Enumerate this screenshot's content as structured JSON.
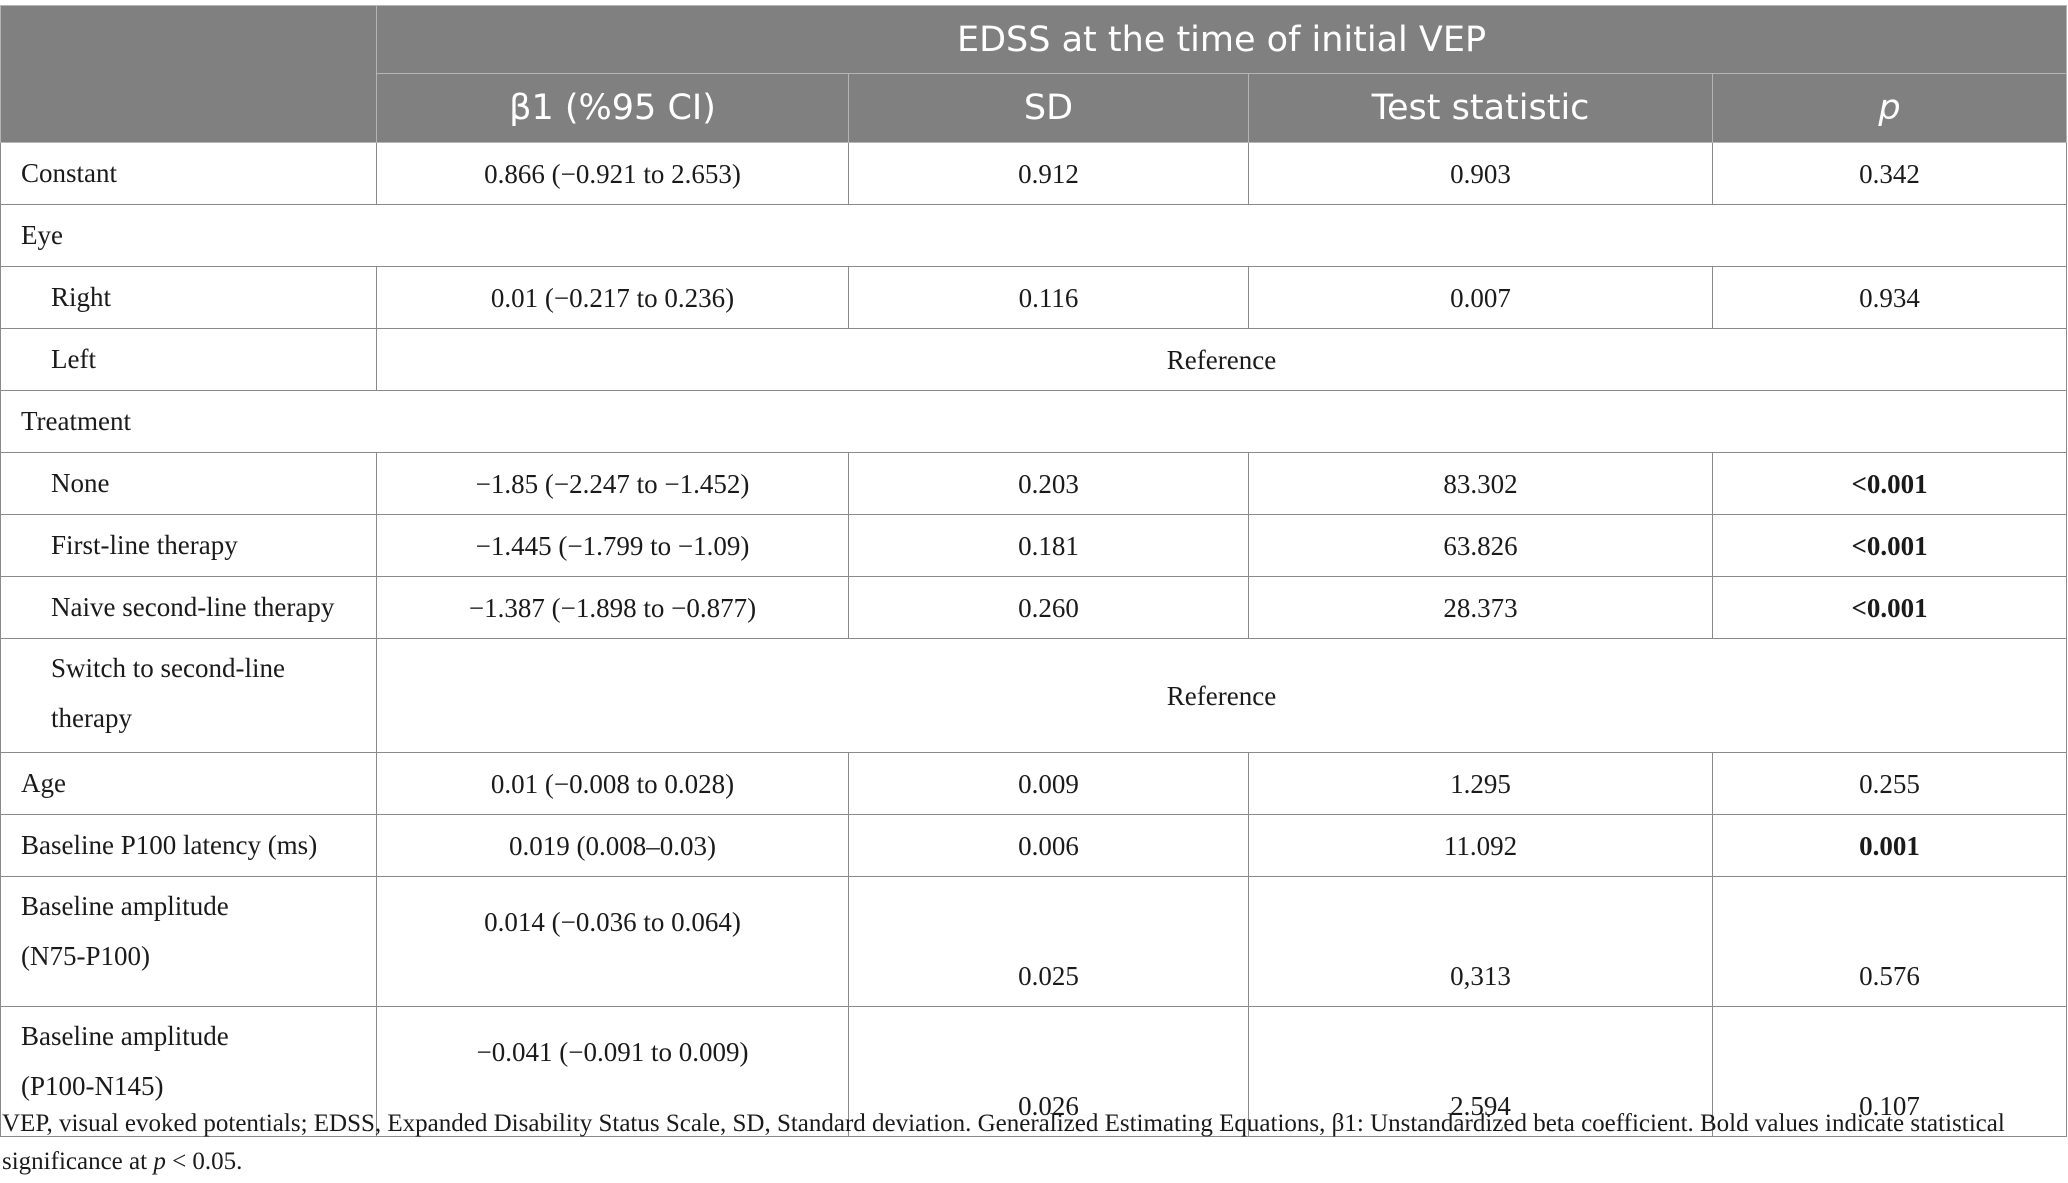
{
  "header": {
    "group_title": "EDSS at the time of initial VEP",
    "columns": [
      "β1 (%95 CI)",
      "SD",
      "Test statistic",
      "p"
    ]
  },
  "rows": {
    "constant": {
      "label": "Constant",
      "beta": "0.866 (−0.921 to 2.653)",
      "sd": "0.912",
      "stat": "0.903",
      "p": "0.342"
    },
    "eye": {
      "label": "Eye"
    },
    "right": {
      "label": "Right",
      "beta": "0.01 (−0.217 to 0.236)",
      "sd": "0.116",
      "stat": "0.007",
      "p": "0.934"
    },
    "left": {
      "label": "Left",
      "reference": "Reference"
    },
    "treatment": {
      "label": "Treatment"
    },
    "none": {
      "label": "None",
      "beta": "−1.85 (−2.247 to −1.452)",
      "sd": "0.203",
      "stat": "83.302",
      "p": "<0.001"
    },
    "first_line": {
      "label": "First-line therapy",
      "beta": "−1.445 (−1.799 to −1.09)",
      "sd": "0.181",
      "stat": "63.826",
      "p": "<0.001"
    },
    "naive_second": {
      "label": "Naive second-line therapy",
      "beta": "−1.387 (−1.898 to −0.877)",
      "sd": "0.260",
      "stat": "28.373",
      "p": "<0.001"
    },
    "switch_second": {
      "label_line1": "Switch to second-line",
      "label_line2": "therapy",
      "reference": "Reference"
    },
    "age": {
      "label": "Age",
      "beta": "0.01 (−0.008 to 0.028)",
      "sd": "0.009",
      "stat": "1.295",
      "p": "0.255"
    },
    "p100_latency": {
      "label": "Baseline P100 latency (ms)",
      "beta": "0.019 (0.008–0.03)",
      "sd": "0.006",
      "stat": "11.092",
      "p": "0.001"
    },
    "amp_n75": {
      "label_line1": "Baseline amplitude",
      "label_line2": "(N75-P100)",
      "beta": "0.014 (−0.036 to 0.064)",
      "sd": "0.025",
      "stat": "0,313",
      "p": "0.576"
    },
    "amp_n145": {
      "label_line1": "Baseline amplitude",
      "label_line2": "(P100-N145)",
      "beta": "−0.041 (−0.091 to 0.009)",
      "sd": "0.026",
      "stat": "2.594",
      "p": "0.107"
    }
  },
  "footnote": {
    "part1": "VEP, visual evoked potentials; EDSS, Expanded Disability Status Scale, SD, Standard deviation. Generalized Estimating Equations, β1: Unstandardized beta coefficient. Bold values indicate statistical significance at ",
    "p_italic": "p",
    "part2": " < 0.05."
  }
}
